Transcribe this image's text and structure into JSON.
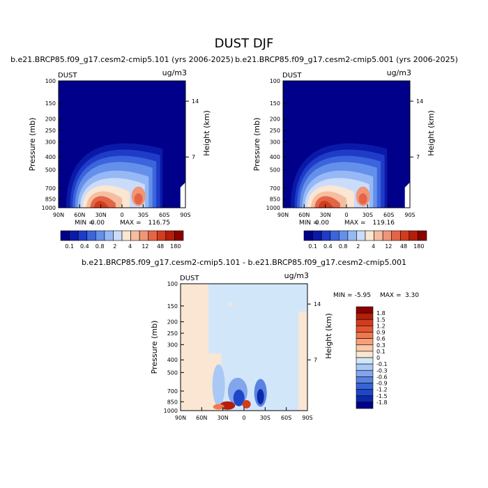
{
  "page_title": "DUST DJF",
  "chart_data": [
    {
      "type": "heatmap",
      "title": "b.e21.BRCP85.f09_g17.cesm2-cmip5.101 (yrs 2006-2025)",
      "field_label": "DUST",
      "units": "ug/m3",
      "ylabel": "Pressure (mb)",
      "ylabel_right": "Height (km)",
      "x_ticks": [
        "90N",
        "60N",
        "30N",
        "0",
        "30S",
        "60S",
        "90S"
      ],
      "y_ticks": [
        "100",
        "150",
        "200",
        "250",
        "300",
        "400",
        "500",
        "700",
        "850",
        "1000"
      ],
      "height_ticks": [
        "14",
        "7"
      ],
      "min_label": "MIN =",
      "min_value": "0.00",
      "max_label": "MAX =",
      "max_value": "116.75",
      "colorbar_labels": [
        "0.1",
        "0.4",
        "0.8",
        "2",
        "4",
        "12",
        "48",
        "180"
      ],
      "colors": [
        "#00008b",
        "#0a1aa8",
        "#1e3cc8",
        "#3c64dc",
        "#6490eb",
        "#96b9f5",
        "#cadcfa",
        "#fae6d2",
        "#f5bea0",
        "#f09678",
        "#e66446",
        "#d23c1e",
        "#b41e0a",
        "#8b0000"
      ]
    },
    {
      "type": "heatmap",
      "title": "b.e21.BRCP85.f09_g17.cesm2-cmip5.001 (yrs 2006-2025)",
      "field_label": "DUST",
      "units": "ug/m3",
      "ylabel": "Pressure (mb)",
      "ylabel_right": "Height (km)",
      "x_ticks": [
        "90N",
        "60N",
        "30N",
        "0",
        "30S",
        "60S",
        "90S"
      ],
      "y_ticks": [
        "100",
        "150",
        "200",
        "250",
        "300",
        "400",
        "500",
        "700",
        "850",
        "1000"
      ],
      "height_ticks": [
        "14",
        "7"
      ],
      "min_label": "MIN =",
      "min_value": "0.00",
      "max_label": "MAX =",
      "max_value": "119.16",
      "colorbar_labels": [
        "0.1",
        "0.4",
        "0.8",
        "2",
        "4",
        "12",
        "48",
        "180"
      ],
      "colors": [
        "#00008b",
        "#0a1aa8",
        "#1e3cc8",
        "#3c64dc",
        "#6490eb",
        "#96b9f5",
        "#cadcfa",
        "#fae6d2",
        "#f5bea0",
        "#f09678",
        "#e66446",
        "#d23c1e",
        "#b41e0a",
        "#8b0000"
      ]
    },
    {
      "type": "heatmap",
      "title": "b.e21.BRCP85.f09_g17.cesm2-cmip5.101 - b.e21.BRCP85.f09_g17.cesm2-cmip5.001",
      "field_label": "DUST",
      "units": "ug/m3",
      "ylabel": "Pressure (mb)",
      "ylabel_right": "Height (km)",
      "x_ticks": [
        "90N",
        "60N",
        "30N",
        "0",
        "30S",
        "60S",
        "90S"
      ],
      "y_ticks": [
        "100",
        "150",
        "200",
        "250",
        "300",
        "400",
        "500",
        "700",
        "850",
        "1000"
      ],
      "height_ticks": [
        "14",
        "7"
      ],
      "min_label": "MIN =",
      "min_value": "-5.95",
      "max_label": "MAX =",
      "max_value": "3.30",
      "colorbar_labels": [
        "1.8",
        "1.5",
        "1.2",
        "0.9",
        "0.6",
        "0.3",
        "0.1",
        "0",
        "-0.1",
        "-0.3",
        "-0.6",
        "-0.9",
        "-1.2",
        "-1.5",
        "-1.8"
      ],
      "colors": [
        "#8b0000",
        "#b41e0a",
        "#d23c1e",
        "#e65532",
        "#f07850",
        "#f5a078",
        "#fac8aa",
        "#fae6d2",
        "#d2e6fa",
        "#aac8f5",
        "#82a5eb",
        "#5a82e1",
        "#3764d7",
        "#1e46c8",
        "#0a28aa",
        "#00008b"
      ]
    }
  ]
}
